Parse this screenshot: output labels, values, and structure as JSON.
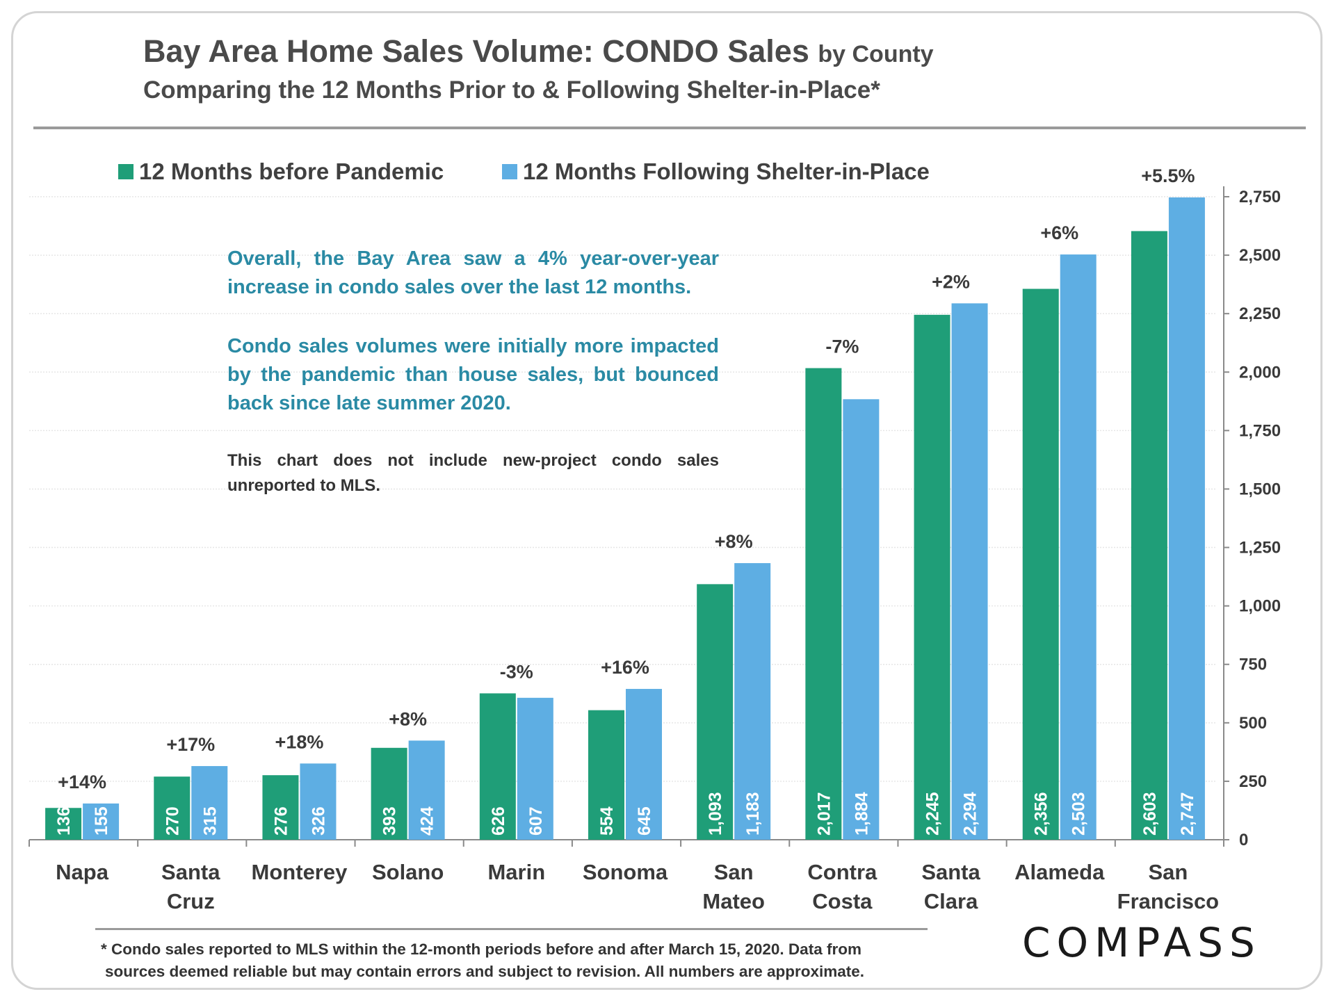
{
  "header": {
    "title": "Bay Area Home Sales Volume: CONDO Sales",
    "title_suffix": "by County",
    "subtitle": "Comparing the 12 Months Prior to & Following Shelter-in-Place*"
  },
  "notes": {
    "para1": "Overall, the Bay Area saw a 4% year-over-year increase in condo sales over the last 12 months.",
    "para2": "Condo sales volumes were initially more impacted by the pandemic than house sales, but bounced back since late summer 2020.",
    "para3": "This chart does not include new-project condo sales unreported to MLS."
  },
  "footnote": {
    "line1": "* Condo sales reported to MLS within the 12-month periods before and after March 15, 2020. Data from",
    "line2": "sources deemed reliable but may contain errors and subject to revision.  All numbers are approximate."
  },
  "logo": {
    "text": "COMPASS"
  },
  "colors": {
    "before": "#1f9e78",
    "after": "#5eaee3",
    "grid": "#e6e6e6",
    "axis": "#8a8a8a",
    "change": "#3a3a3a"
  },
  "chart_data": {
    "type": "bar",
    "title": "Bay Area Home Sales Volume: CONDO Sales by County",
    "categories": [
      [
        "Napa"
      ],
      [
        "Santa",
        "Cruz"
      ],
      [
        "Monterey"
      ],
      [
        "Solano"
      ],
      [
        "Marin"
      ],
      [
        "Sonoma"
      ],
      [
        "San",
        "Mateo"
      ],
      [
        "Contra",
        "Costa"
      ],
      [
        "Santa",
        "Clara"
      ],
      [
        "Alameda"
      ],
      [
        "San",
        "Francisco"
      ]
    ],
    "series": [
      {
        "name": "12 Months before Pandemic",
        "values": [
          136,
          270,
          276,
          393,
          626,
          554,
          1093,
          2017,
          2245,
          2356,
          2603
        ],
        "labels": [
          "136",
          "270",
          "276",
          "393",
          "626",
          "554",
          "1,093",
          "2,017",
          "2,245",
          "2,356",
          "2,603"
        ]
      },
      {
        "name": "12 Months Following Shelter-in-Place",
        "values": [
          155,
          315,
          326,
          424,
          607,
          645,
          1183,
          1884,
          2294,
          2503,
          2747
        ],
        "labels": [
          "155",
          "315",
          "326",
          "424",
          "607",
          "645",
          "1,183",
          "1,884",
          "2,294",
          "2,503",
          "2,747"
        ]
      }
    ],
    "changes": [
      "+14%",
      "+17%",
      "+18%",
      "+8%",
      "-3%",
      "+16%",
      "+8%",
      "-7%",
      "+2%",
      "+6%",
      "+5.5%"
    ],
    "ylim": [
      0,
      2750
    ],
    "yticks": [
      0,
      250,
      500,
      750,
      1000,
      1250,
      1500,
      1750,
      2000,
      2250,
      2500,
      2750
    ],
    "ytick_labels": [
      "0",
      "250",
      "500",
      "750",
      "1,000",
      "1,250",
      "1,500",
      "1,750",
      "2,000",
      "2,250",
      "2,500",
      "2,750"
    ],
    "y_axis_side": "right",
    "grid": true,
    "legend": "top-left"
  }
}
